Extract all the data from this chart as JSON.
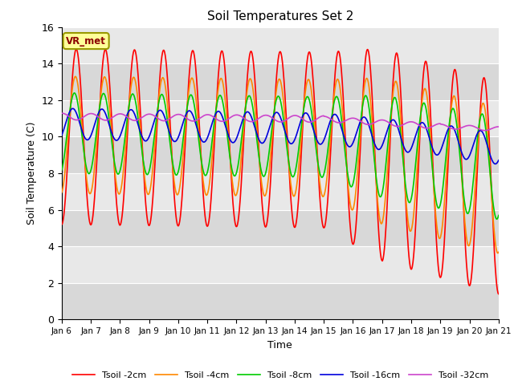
{
  "title": "Soil Temperatures Set 2",
  "xlabel": "Time",
  "ylabel": "Soil Temperature (C)",
  "ylim": [
    0,
    16
  ],
  "yticks": [
    0,
    2,
    4,
    6,
    8,
    10,
    12,
    14,
    16
  ],
  "x_labels": [
    "Jan 6",
    "Jan 7",
    "Jan 8",
    "Jan 9",
    "Jan 10",
    "Jan 11",
    "Jan 12",
    "Jan 13",
    "Jan 14",
    "Jan 15",
    "Jan 16",
    "Jan 17",
    "Jan 18",
    "Jan 19",
    "Jan 20",
    "Jan 21"
  ],
  "legend_labels": [
    "Tsoil -2cm",
    "Tsoil -4cm",
    "Tsoil -8cm",
    "Tsoil -16cm",
    "Tsoil -32cm"
  ],
  "colors": [
    "#ff0000",
    "#ff8800",
    "#00cc00",
    "#0000dd",
    "#cc44cc"
  ],
  "annotation_text": "VR_met",
  "bg_color": "#e0e0e0",
  "fig_color": "#ffffff",
  "grid_colors": [
    "#ffffff",
    "#d0d0d0"
  ],
  "n_days": 15,
  "n_per_day": 96,
  "line_width": 1.2
}
